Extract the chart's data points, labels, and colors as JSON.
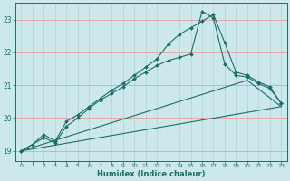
{
  "xlabel": "Humidex (Indice chaleur)",
  "bg_color": "#cde8ec",
  "grid_color_v": "#b0d8de",
  "grid_color_h": "#e8a0a0",
  "line_color": "#1a6e65",
  "xlim": [
    -0.5,
    23.5
  ],
  "ylim": [
    18.7,
    23.5
  ],
  "xticks": [
    0,
    1,
    2,
    3,
    4,
    5,
    6,
    7,
    8,
    9,
    10,
    11,
    12,
    13,
    14,
    15,
    16,
    17,
    18,
    19,
    20,
    21,
    22,
    23
  ],
  "yticks": [
    19,
    20,
    21,
    22,
    23
  ],
  "curve1_x": [
    0,
    1,
    2,
    3,
    4,
    5,
    6,
    7,
    8,
    9,
    10,
    11,
    12,
    13,
    14,
    15,
    16,
    17,
    18,
    19,
    20,
    21,
    22,
    23
  ],
  "curve1_y": [
    19.0,
    19.2,
    19.5,
    19.3,
    19.9,
    20.1,
    20.35,
    20.6,
    20.85,
    21.05,
    21.3,
    21.55,
    21.8,
    22.25,
    22.55,
    22.75,
    22.95,
    23.15,
    22.3,
    21.4,
    21.3,
    21.1,
    20.95,
    20.45
  ],
  "curve2_x": [
    0,
    2,
    3,
    4,
    5,
    6,
    7,
    8,
    9,
    10,
    11,
    12,
    13,
    14,
    15,
    16,
    17,
    18,
    19,
    20,
    21,
    22,
    23
  ],
  "curve2_y": [
    19.0,
    19.4,
    19.25,
    19.75,
    20.0,
    20.3,
    20.55,
    20.75,
    20.95,
    21.2,
    21.4,
    21.6,
    21.75,
    21.85,
    21.95,
    23.25,
    23.05,
    21.65,
    21.3,
    21.25,
    21.05,
    20.9,
    20.45
  ],
  "curve3_x": [
    0,
    23
  ],
  "curve3_y": [
    19.0,
    20.35
  ],
  "curve4_x": [
    0,
    20,
    23
  ],
  "curve4_y": [
    19.0,
    21.15,
    20.35
  ]
}
